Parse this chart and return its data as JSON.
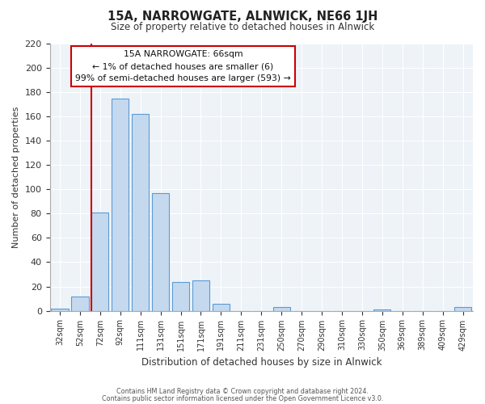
{
  "title": "15A, NARROWGATE, ALNWICK, NE66 1JH",
  "subtitle": "Size of property relative to detached houses in Alnwick",
  "xlabel": "Distribution of detached houses by size in Alnwick",
  "ylabel": "Number of detached properties",
  "categories": [
    "32sqm",
    "52sqm",
    "72sqm",
    "92sqm",
    "111sqm",
    "131sqm",
    "151sqm",
    "171sqm",
    "191sqm",
    "211sqm",
    "231sqm",
    "250sqm",
    "270sqm",
    "290sqm",
    "310sqm",
    "330sqm",
    "350sqm",
    "369sqm",
    "389sqm",
    "409sqm",
    "429sqm"
  ],
  "values": [
    2,
    12,
    81,
    175,
    162,
    97,
    24,
    25,
    6,
    0,
    0,
    3,
    0,
    0,
    0,
    0,
    1,
    0,
    0,
    0,
    3
  ],
  "bar_color": "#c5d9ee",
  "bar_edge_color": "#5b9bd5",
  "marker_line_color": "#cc0000",
  "ylim": [
    0,
    220
  ],
  "yticks": [
    0,
    20,
    40,
    60,
    80,
    100,
    120,
    140,
    160,
    180,
    200,
    220
  ],
  "annotation_line1": "15A NARROWGATE: 66sqm",
  "annotation_line2": "← 1% of detached houses are smaller (6)",
  "annotation_line3": "99% of semi-detached houses are larger (593) →",
  "annotation_box_color": "#ffffff",
  "annotation_box_edge": "#cc0000",
  "footer1": "Contains HM Land Registry data © Crown copyright and database right 2024.",
  "footer2": "Contains public sector information licensed under the Open Government Licence v3.0.",
  "bg_color": "#ffffff",
  "grid_color": "#d0d8e4"
}
